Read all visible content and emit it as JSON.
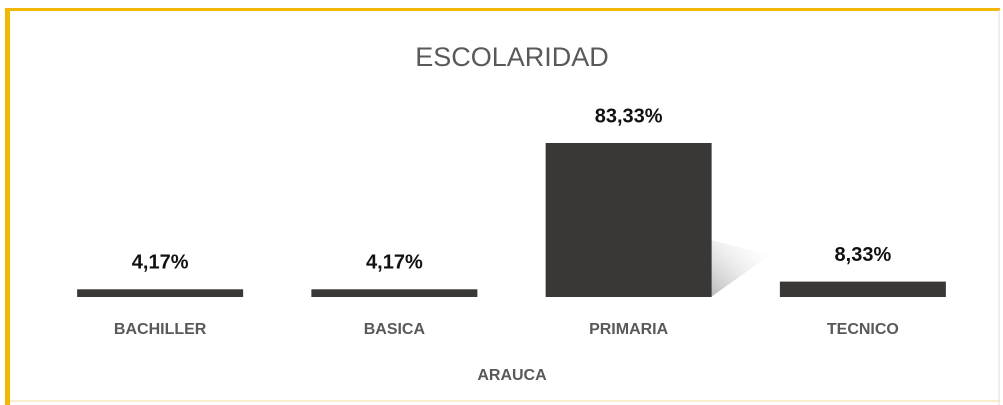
{
  "chart_data": {
    "type": "bar",
    "title": "ESCOLARIDAD",
    "categories": [
      "BACHILLER",
      "BASICA",
      "PRIMARIA",
      "TECNICO"
    ],
    "values": [
      4.17,
      4.17,
      83.33,
      8.33
    ],
    "value_labels": [
      "4,17%",
      "4,17%",
      "83,33%",
      "8,33%"
    ],
    "x_label": "ARAUCA",
    "color": "#393837"
  }
}
